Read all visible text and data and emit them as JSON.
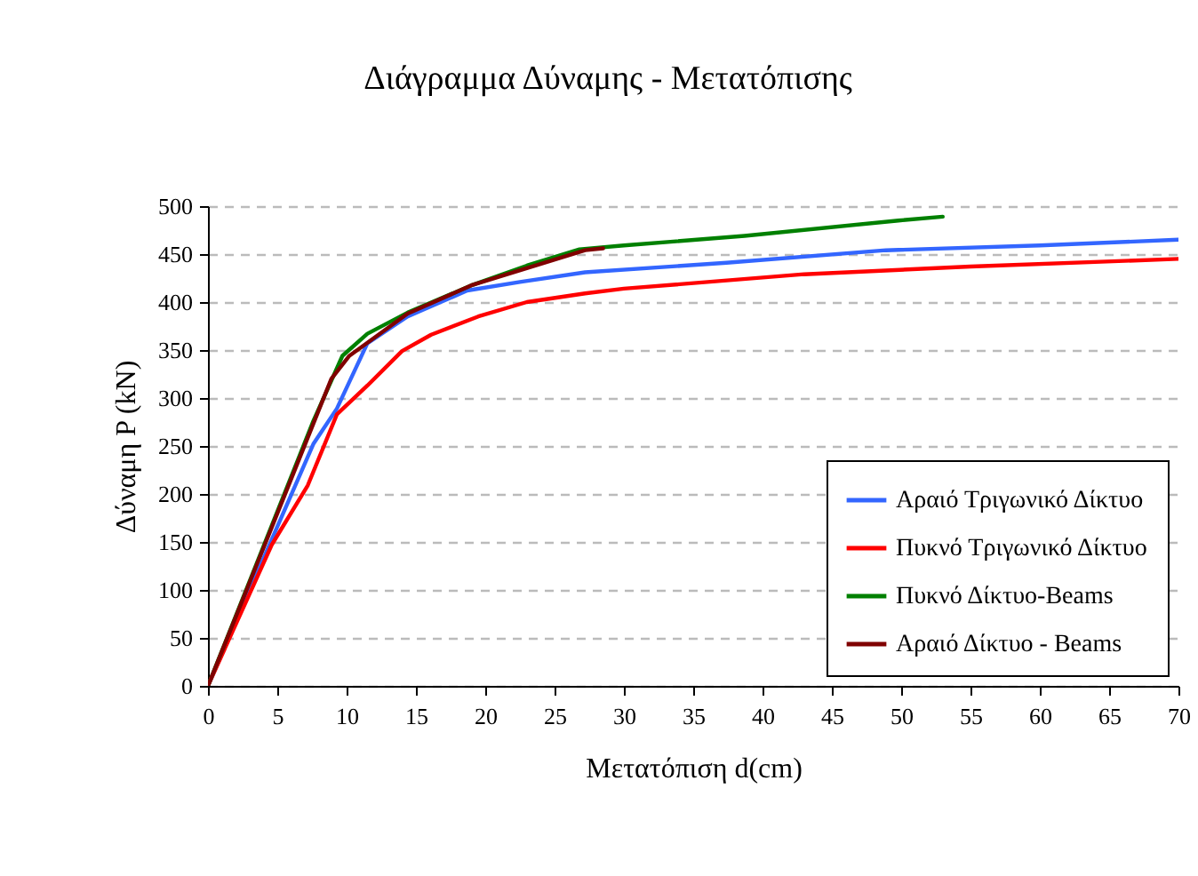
{
  "chart_data": {
    "type": "line",
    "title": "Διάγραμμα Δύναμης - Μετατόπισης",
    "xlabel": "Μετατόπιση d(cm)",
    "ylabel": "Δύναμη P (kN)",
    "xlim": [
      0,
      70
    ],
    "xticks": [
      0,
      5,
      10,
      15,
      20,
      25,
      30,
      35,
      40,
      45,
      50,
      55,
      60,
      65,
      70
    ],
    "ylim": [
      0,
      500
    ],
    "yticks": [
      0,
      50,
      100,
      150,
      200,
      250,
      300,
      350,
      400,
      450,
      500
    ],
    "grid": "y",
    "legend": "bottom right",
    "marker": "none",
    "line_style": "solid",
    "series": [
      {
        "name": "Αραιό Τριγωνικό Δίκτυο",
        "color": "#3366ff",
        "x": [
          0,
          7.6,
          9.3,
          11.5,
          14.4,
          18.7,
          22.5,
          27.2,
          37.4,
          48.9,
          60,
          70
        ],
        "values": [
          0,
          252,
          289,
          357,
          385,
          412,
          421,
          431,
          441,
          454,
          459,
          465
        ]
      },
      {
        "name": "Πυκνό Τριγωνικό Δίκτυο",
        "color": "#ff0000",
        "x": [
          0,
          4.6,
          7.2,
          9.3,
          11.5,
          14,
          16.1,
          19.5,
          23,
          27.2,
          30,
          43,
          55,
          70
        ],
        "values": [
          0,
          147,
          209,
          283,
          313,
          349,
          366,
          385,
          400,
          409,
          414,
          429,
          437,
          445
        ]
      },
      {
        "name": "Πυκνό Δίκτυο-Beams",
        "color": "#008000",
        "x": [
          0,
          7.6,
          9.7,
          11.5,
          14.4,
          19.1,
          23,
          26.8,
          30,
          38.7,
          49.8,
          53
        ],
        "values": [
          0,
          276,
          344,
          367,
          389,
          418,
          438,
          455,
          459,
          469,
          485,
          489
        ]
      },
      {
        "name": "Αραιό Δίκτυο - Beams",
        "color": "#800000",
        "x": [
          0,
          4.6,
          8.9,
          10.2,
          14.4,
          19.1,
          27.2,
          28.5
        ],
        "values": [
          0,
          165,
          320,
          344,
          388,
          418,
          454,
          456
        ]
      }
    ]
  }
}
